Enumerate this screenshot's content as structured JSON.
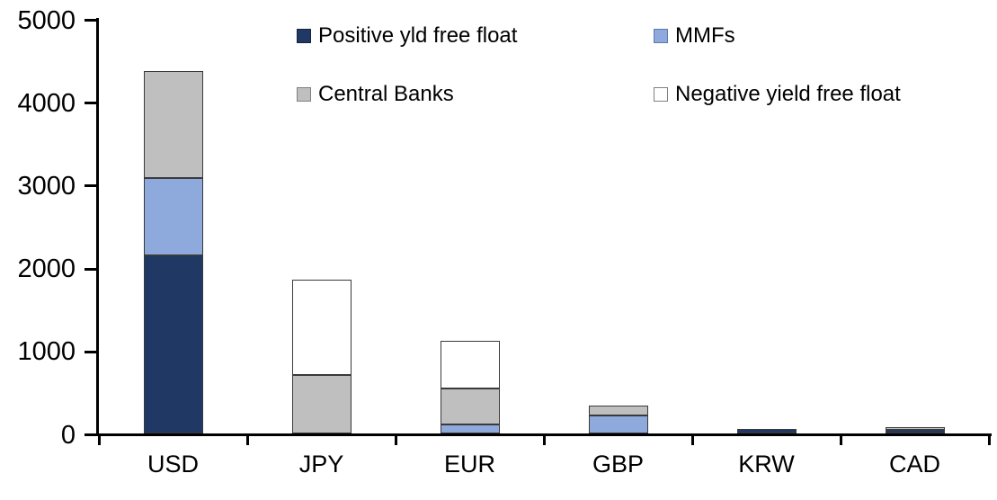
{
  "chart_data": {
    "type": "bar",
    "stacked": true,
    "title": "",
    "xlabel": "",
    "ylabel": "",
    "categories": [
      "USD",
      "JPY",
      "EUR",
      "GBP",
      "KRW",
      "CAD"
    ],
    "series": [
      {
        "name": "Positive yld free float",
        "color": "#1F3864",
        "swatch_border": "#16243f",
        "values": [
          2150,
          0,
          0,
          0,
          50,
          40
        ]
      },
      {
        "name": "MMFs",
        "color": "#8EA9DB",
        "swatch_border": "#5c7ab0",
        "values": [
          930,
          0,
          110,
          220,
          0,
          0
        ]
      },
      {
        "name": "Central Banks",
        "color": "#BFBFBF",
        "swatch_border": "#808080",
        "values": [
          1290,
          700,
          435,
          115,
          0,
          40
        ]
      },
      {
        "name": "Negative yield free float",
        "color": "#FFFFFF",
        "swatch_border": "#808080",
        "values": [
          0,
          1150,
          575,
          0,
          0,
          0
        ]
      }
    ],
    "totals": [
      4370,
      1850,
      1120,
      335,
      50,
      80
    ],
    "ylim": [
      0,
      5000
    ],
    "y_ticks": [
      0,
      1000,
      2000,
      3000,
      4000,
      5000
    ],
    "grid": false,
    "legend_position": "top",
    "legend_rows": [
      [
        "Positive yld free float",
        "MMFs"
      ],
      [
        "Central Banks",
        "Negative yield free float"
      ]
    ]
  },
  "colors": {
    "axis": "#000000",
    "segment_border": "#3a3a3a",
    "background": "#FFFFFF",
    "text": "#000000"
  }
}
